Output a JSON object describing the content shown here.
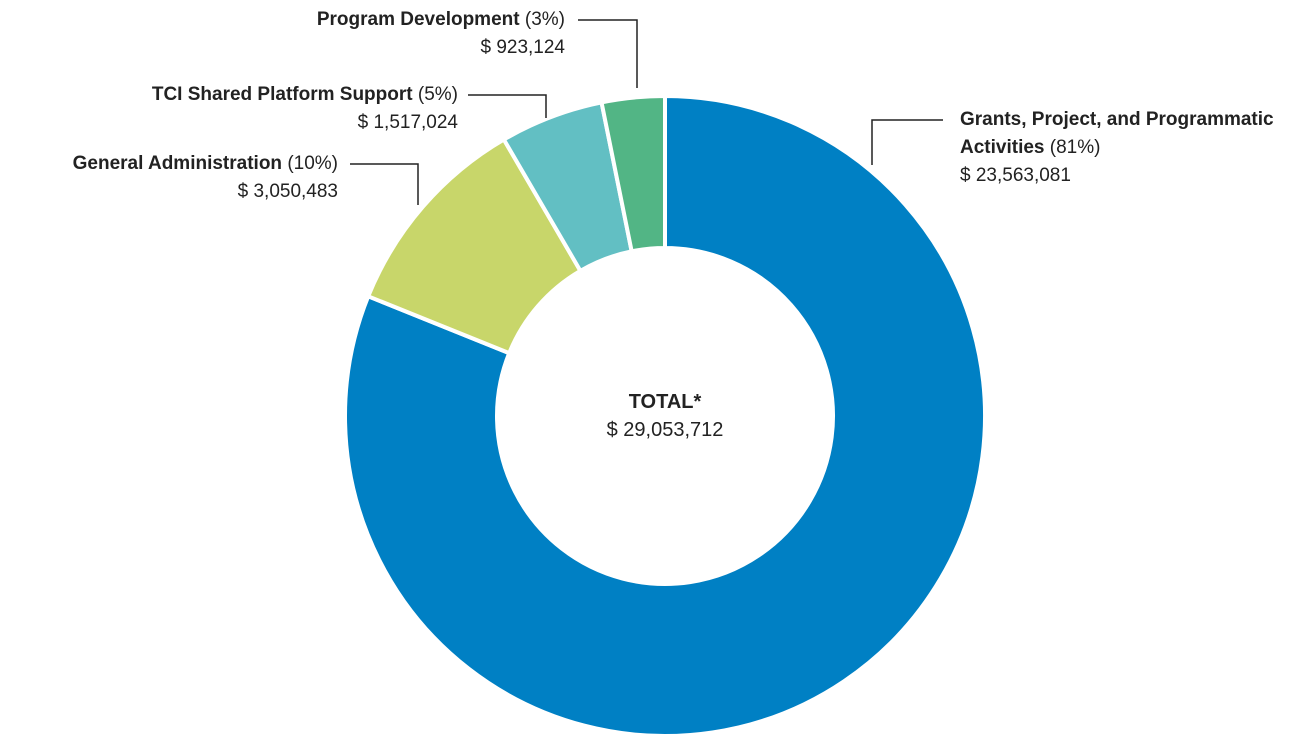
{
  "chart_data": {
    "type": "donut",
    "categories": [
      "Grants, Project, and Programmatic Activities",
      "General Administration",
      "TCI Shared Platform Support",
      "Program Development"
    ],
    "values": [
      23563081,
      3050483,
      1517024,
      923124
    ],
    "value_labels": [
      "$ 23,563,081",
      "$ 3,050,483",
      "$ 1,517,024",
      "$ 923,124"
    ],
    "percent_labels": [
      "(81%)",
      "(10%)",
      "(5%)",
      "(3%)"
    ],
    "colors": [
      "#0080c4",
      "#c8d66a",
      "#62bfc3",
      "#52b585"
    ],
    "total_label": "TOTAL*",
    "total_value": 29053712,
    "total_value_label": "$ 29,053,712"
  }
}
